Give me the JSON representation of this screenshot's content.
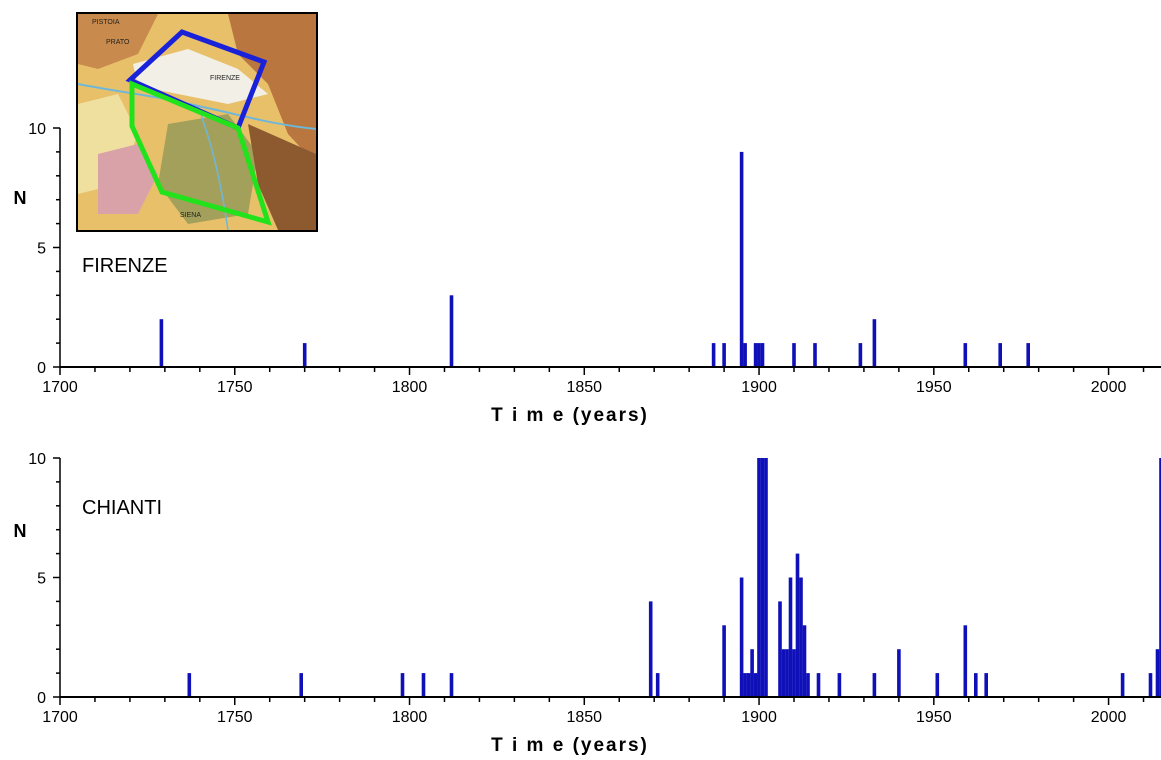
{
  "inset_map": {
    "place_labels": [
      "PISTOIA",
      "PRATO",
      "FIRENZE",
      "SIENA"
    ],
    "colors": {
      "firenze_outline": "#1a22d9",
      "chianti_outline": "#22e21c"
    }
  },
  "chart_data": [
    {
      "type": "bar",
      "region_label": "FIRENZE",
      "xlabel": "T i m e  (years)",
      "ylabel": "N",
      "xlim": [
        1700,
        2015
      ],
      "ylim": [
        0,
        10
      ],
      "xticks": [
        1700,
        1750,
        1800,
        1850,
        1900,
        1950,
        2000
      ],
      "yticks": [
        0,
        5,
        10
      ],
      "bar_color": "#1010b8",
      "x": [
        1729,
        1770,
        1812,
        1887,
        1890,
        1895,
        1896,
        1899,
        1900,
        1901,
        1910,
        1916,
        1929,
        1933,
        1959,
        1969,
        1977
      ],
      "values": [
        2,
        1,
        3,
        1,
        1,
        9,
        1,
        1,
        1,
        1,
        1,
        1,
        1,
        2,
        1,
        1,
        1
      ]
    },
    {
      "type": "bar",
      "region_label": "CHIANTI",
      "xlabel": "T i m e  (years)",
      "ylabel": "N",
      "xlim": [
        1700,
        2015
      ],
      "ylim": [
        0,
        10
      ],
      "xticks": [
        1700,
        1750,
        1800,
        1850,
        1900,
        1950,
        2000
      ],
      "yticks": [
        0,
        5,
        10
      ],
      "bar_color": "#1010b8",
      "x": [
        1737,
        1769,
        1798,
        1804,
        1812,
        1869,
        1871,
        1890,
        1895,
        1896,
        1897,
        1898,
        1899,
        1900,
        1901,
        1902,
        1906,
        1907,
        1908,
        1909,
        1910,
        1911,
        1912,
        1913,
        1914,
        1917,
        1923,
        1933,
        1940,
        1951,
        1959,
        1962,
        1965,
        2004,
        2012,
        2014,
        2015
      ],
      "values": [
        1,
        1,
        1,
        1,
        1,
        4,
        1,
        3,
        5,
        1,
        1,
        2,
        1,
        10,
        10,
        10,
        4,
        2,
        2,
        5,
        2,
        6,
        5,
        3,
        1,
        1,
        1,
        1,
        2,
        1,
        3,
        1,
        1,
        1,
        1,
        2,
        10
      ]
    }
  ]
}
